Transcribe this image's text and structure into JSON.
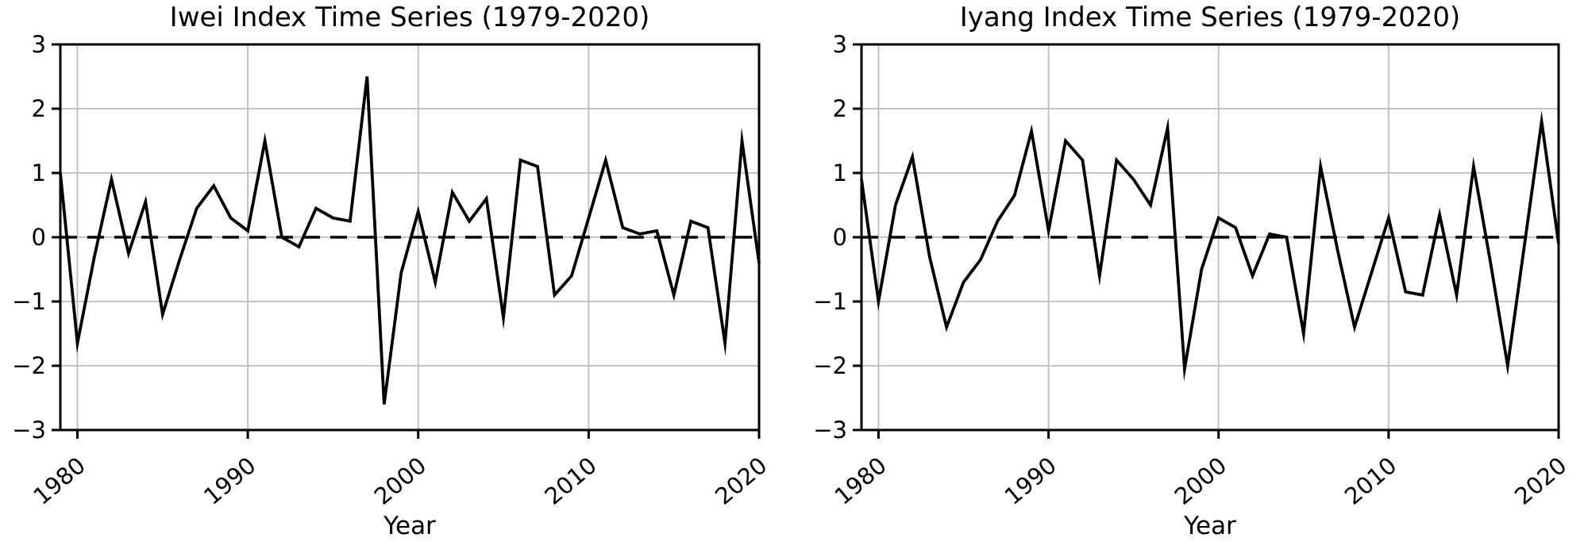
{
  "page": {
    "background": "#ffffff",
    "text_color": "#000000",
    "grid_color": "#bdbdbd",
    "line_color": "#000000"
  },
  "chart_data": [
    {
      "type": "line",
      "title": "Iwei Index Time Series (1979-2020)",
      "xlabel": "Year",
      "ylabel": "",
      "ylim": [
        -3,
        3
      ],
      "xlim": [
        1979,
        2020
      ],
      "grid": true,
      "legend": "none",
      "zero_line": {
        "value": 0,
        "style": "dashed",
        "color": "#000000"
      },
      "xticks": [
        1980,
        1990,
        2000,
        2010,
        2020
      ],
      "xticklabels": [
        "1980",
        "1990",
        "2000",
        "2010",
        "2020"
      ],
      "yticks": [
        3,
        2,
        1,
        0,
        -1,
        -2,
        -3
      ],
      "yticklabels": [
        "3",
        "2",
        "1",
        "0",
        "−1",
        "−2",
        "−3"
      ],
      "x": [
        1979,
        1980,
        1981,
        1982,
        1983,
        1984,
        1985,
        1986,
        1987,
        1988,
        1989,
        1990,
        1991,
        1992,
        1993,
        1994,
        1995,
        1996,
        1997,
        1998,
        1999,
        2000,
        2001,
        2002,
        2003,
        2004,
        2005,
        2006,
        2007,
        2008,
        2009,
        2010,
        2011,
        2012,
        2013,
        2014,
        2015,
        2016,
        2017,
        2018,
        2019,
        2020
      ],
      "values": [
        1.0,
        -1.65,
        -0.3,
        0.9,
        -0.25,
        0.55,
        -1.2,
        -0.35,
        0.45,
        0.8,
        0.3,
        0.1,
        1.5,
        0.0,
        -0.15,
        0.45,
        0.3,
        0.25,
        2.5,
        -2.6,
        -0.55,
        0.4,
        -0.7,
        0.7,
        0.25,
        0.6,
        -1.25,
        1.2,
        1.1,
        -0.9,
        -0.6,
        0.3,
        1.2,
        0.15,
        0.05,
        0.1,
        -0.9,
        0.25,
        0.15,
        -1.65,
        1.5,
        -0.4
      ]
    },
    {
      "type": "line",
      "title": "Iyang Index Time Series (1979-2020)",
      "xlabel": "Year",
      "ylabel": "",
      "ylim": [
        -3,
        3
      ],
      "xlim": [
        1979,
        2020
      ],
      "grid": true,
      "legend": "none",
      "zero_line": {
        "value": 0,
        "style": "dashed",
        "color": "#000000"
      },
      "xticks": [
        1980,
        1990,
        2000,
        2010,
        2020
      ],
      "xticklabels": [
        "1980",
        "1990",
        "2000",
        "2010",
        "2020"
      ],
      "yticks": [
        3,
        2,
        1,
        0,
        -1,
        -2,
        -3
      ],
      "yticklabels": [
        "3",
        "2",
        "1",
        "0",
        "−1",
        "−2",
        "−3"
      ],
      "x": [
        1979,
        1980,
        1981,
        1982,
        1983,
        1984,
        1985,
        1986,
        1987,
        1988,
        1989,
        1990,
        1991,
        1992,
        1993,
        1994,
        1995,
        1996,
        1997,
        1998,
        1999,
        2000,
        2001,
        2002,
        2003,
        2004,
        2005,
        2006,
        2007,
        2008,
        2009,
        2010,
        2011,
        2012,
        2013,
        2014,
        2015,
        2016,
        2017,
        2018,
        2019,
        2020
      ],
      "values": [
        0.9,
        -1.0,
        0.5,
        1.25,
        -0.3,
        -1.4,
        -0.7,
        -0.35,
        0.25,
        0.65,
        1.65,
        0.1,
        1.5,
        1.2,
        -0.6,
        1.2,
        0.9,
        0.5,
        1.7,
        -2.05,
        -0.5,
        0.3,
        0.15,
        -0.6,
        0.05,
        0.0,
        -1.5,
        1.1,
        -0.2,
        -1.4,
        -0.55,
        0.3,
        -0.85,
        -0.9,
        0.35,
        -0.9,
        1.1,
        -0.4,
        -2.0,
        -0.1,
        1.8,
        -0.1
      ]
    }
  ]
}
